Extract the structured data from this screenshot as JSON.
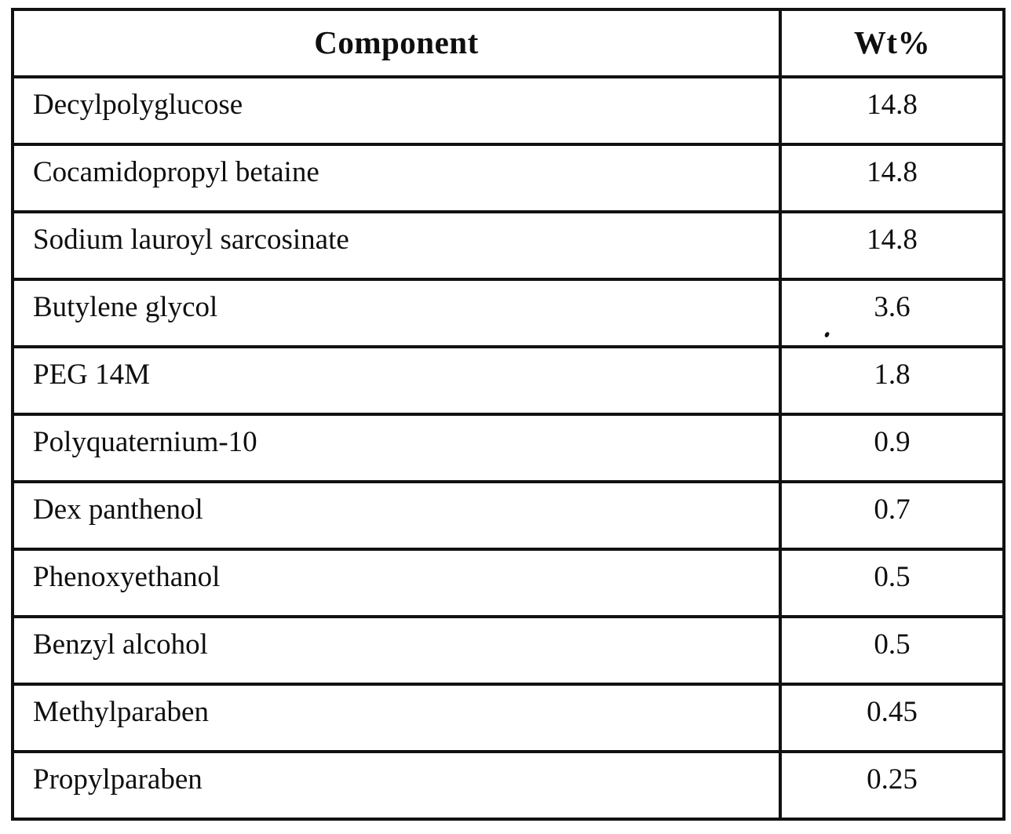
{
  "colors": {
    "ink": "#0f0f0f",
    "paper": "#ffffff",
    "border": "#111111"
  },
  "table": {
    "columns": [
      {
        "label": "Component"
      },
      {
        "label": "Wt%"
      }
    ],
    "rows": [
      {
        "component": "Decylpolyglucose",
        "wt": "14.8"
      },
      {
        "component": "Cocamidopropyl betaine",
        "wt": "14.8"
      },
      {
        "component": "Sodium lauroyl sarcosinate",
        "wt": "14.8"
      },
      {
        "component": "Butylene glycol",
        "wt": "3.6"
      },
      {
        "component": "PEG 14M",
        "wt": "1.8"
      },
      {
        "component": "Polyquaternium-10",
        "wt": "0.9"
      },
      {
        "component": "Dex panthenol",
        "wt": "0.7"
      },
      {
        "component": "Phenoxyethanol",
        "wt": "0.5"
      },
      {
        "component": "Benzyl alcohol",
        "wt": "0.5"
      },
      {
        "component": "Methylparaben",
        "wt": "0.45"
      },
      {
        "component": "Propylparaben",
        "wt": "0.25"
      }
    ]
  }
}
